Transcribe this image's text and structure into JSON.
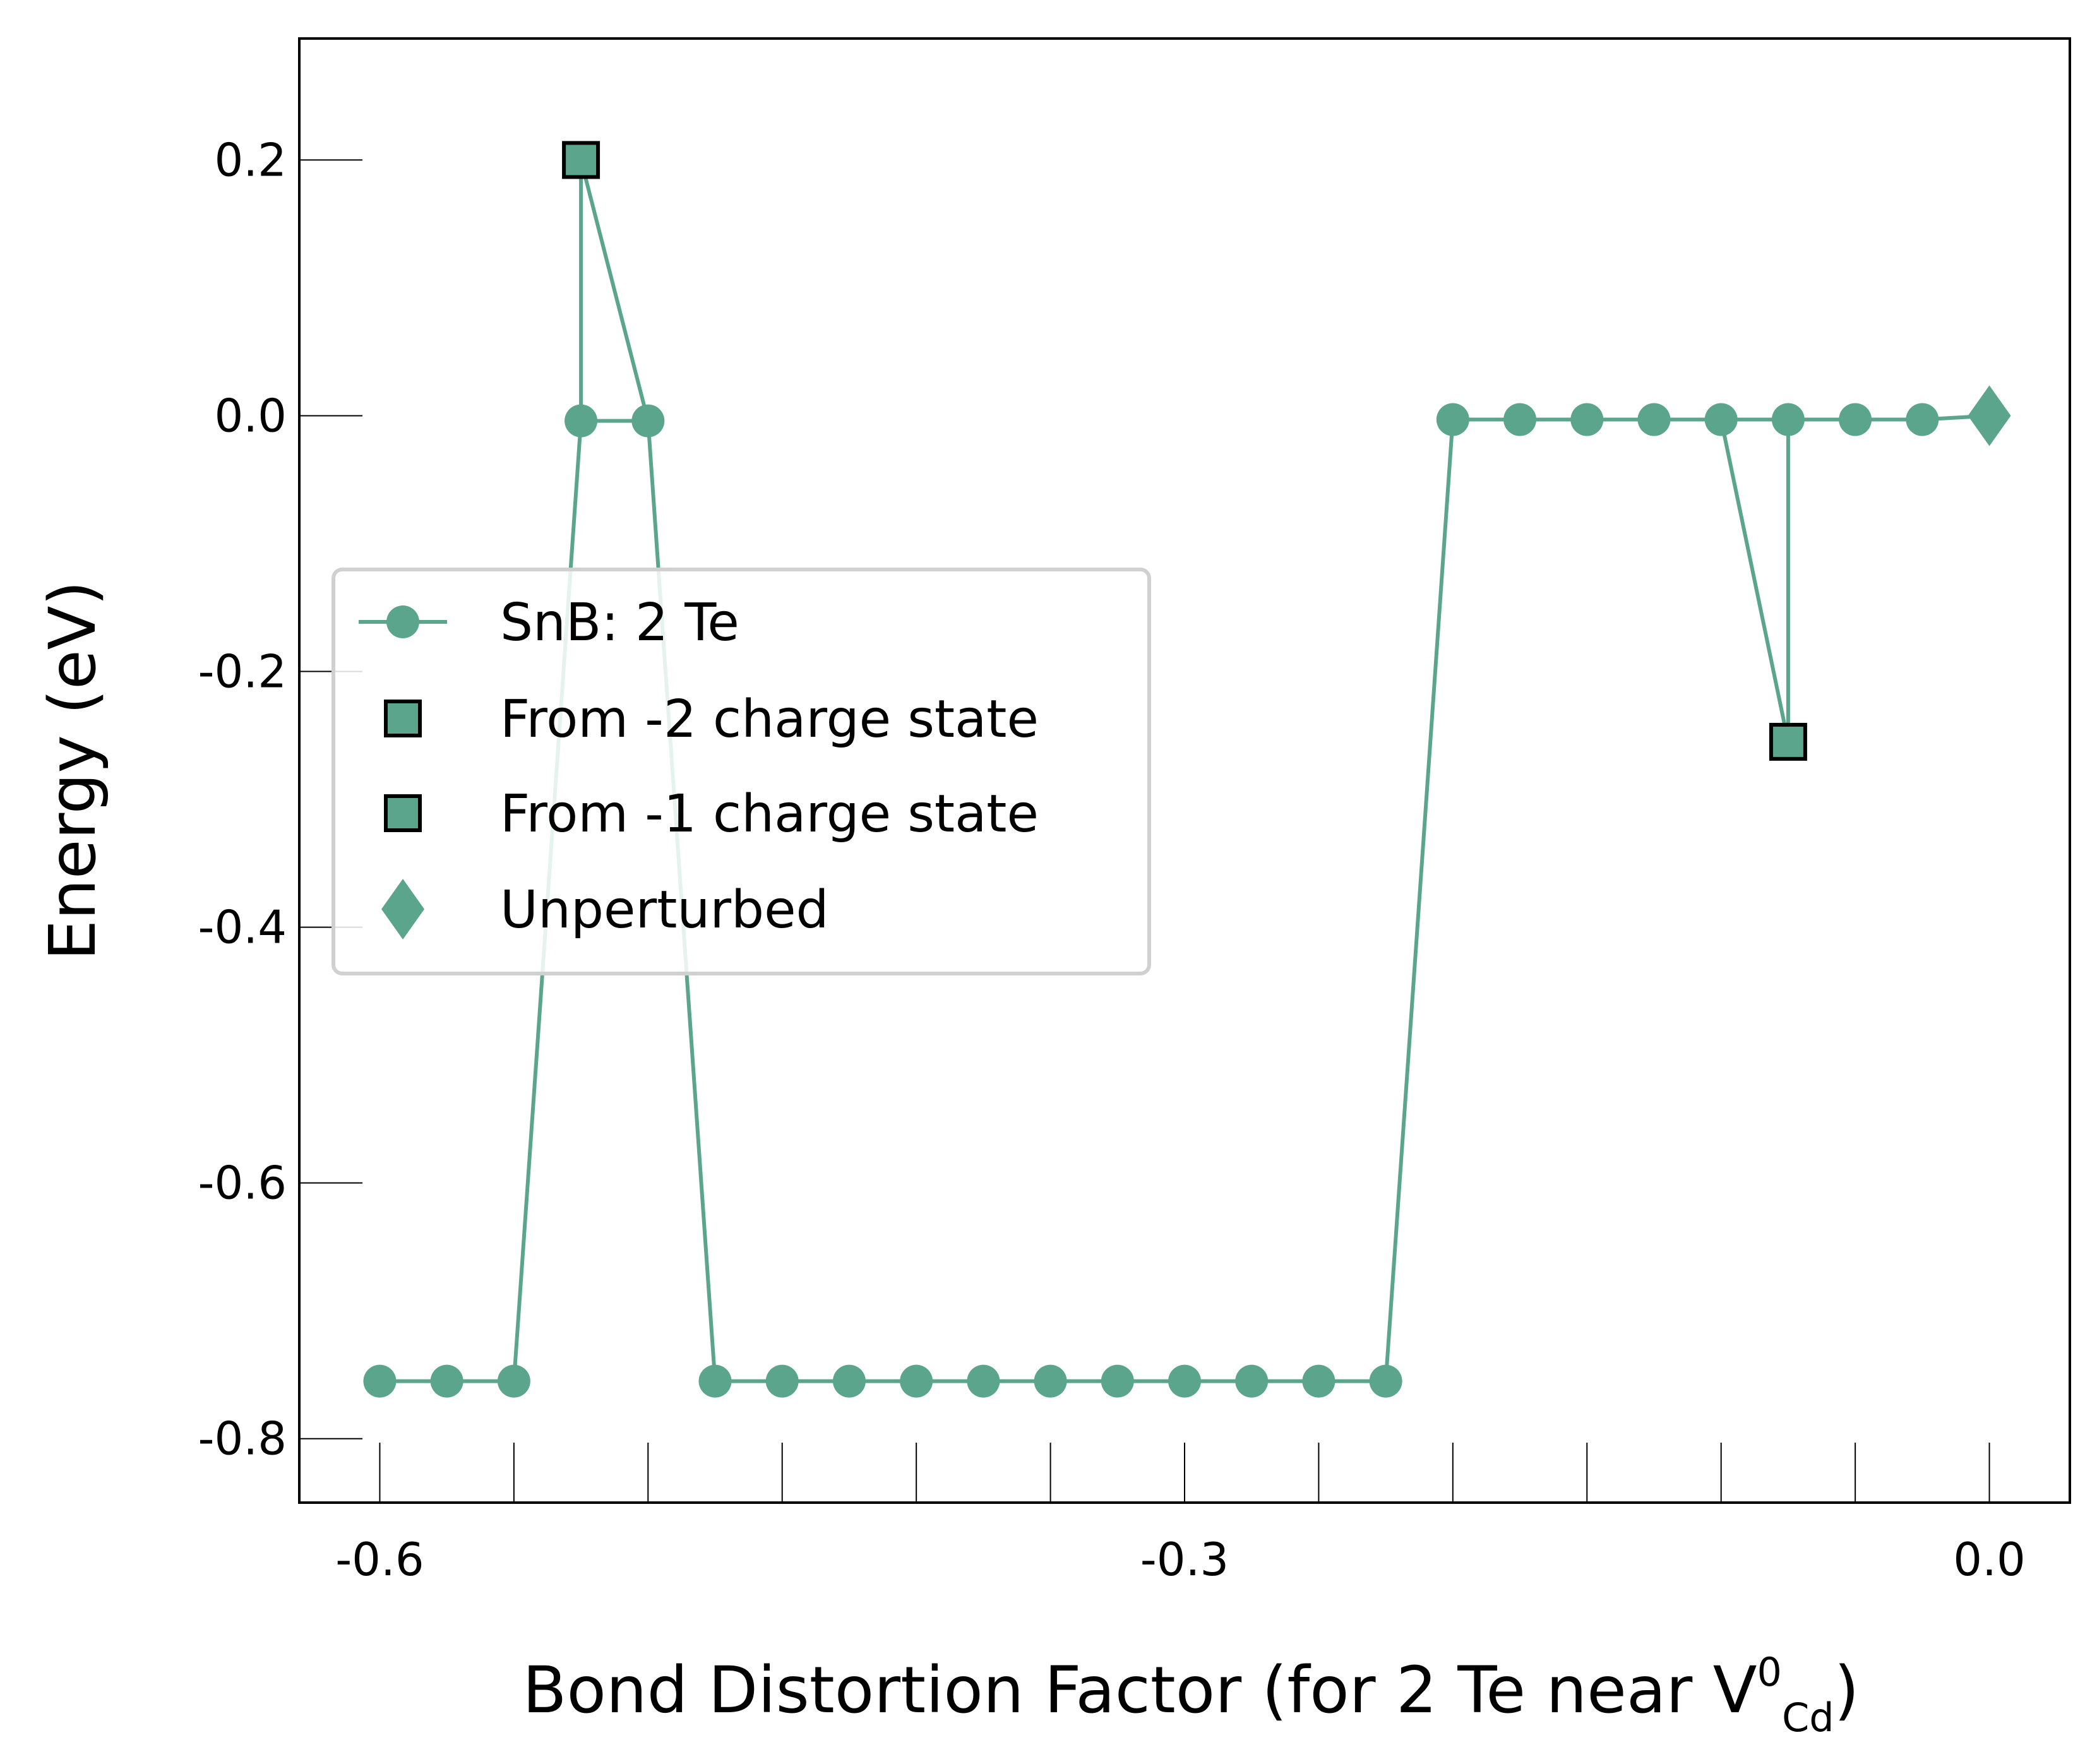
{
  "chart_data": {
    "type": "line",
    "xlabel": "Bond Distortion Factor (for 2 Te near V",
    "xlabel_sup": "0",
    "xlabel_sub": "Cd",
    "xlabel_close": ")",
    "ylabel": "Energy (eV)",
    "xlim": [
      -0.63,
      0.03
    ],
    "ylim": [
      -0.85,
      0.295
    ],
    "grid": false,
    "legend_placement": "center-left",
    "x_ticks": [
      -0.6,
      -0.55,
      -0.5,
      -0.45,
      -0.4,
      -0.35,
      -0.3,
      -0.25,
      -0.2,
      -0.15,
      -0.1,
      -0.05,
      0.0
    ],
    "x_tick_labels": [
      {
        "value": -0.6,
        "label": "-0.6"
      },
      {
        "value": -0.3,
        "label": "-0.3"
      },
      {
        "value": 0.0,
        "label": "0.0"
      }
    ],
    "y_tick_labels": [
      {
        "value": 0.2,
        "label": "0.2"
      },
      {
        "value": 0.0,
        "label": "0.0"
      },
      {
        "value": -0.2,
        "label": "-0.2"
      },
      {
        "value": -0.4,
        "label": "-0.4"
      },
      {
        "value": -0.6,
        "label": "-0.6"
      },
      {
        "value": -0.8,
        "label": "-0.8"
      }
    ],
    "color": "#5aa58c",
    "series": [
      {
        "name": "SnB: 2 Te",
        "marker": "circle",
        "points": [
          {
            "x": -0.6,
            "y": -0.755
          },
          {
            "x": -0.575,
            "y": -0.755
          },
          {
            "x": -0.55,
            "y": -0.755
          },
          {
            "x": -0.525,
            "y": -0.004
          },
          {
            "x": -0.5,
            "y": -0.004
          },
          {
            "x": -0.475,
            "y": -0.755
          },
          {
            "x": -0.45,
            "y": -0.755
          },
          {
            "x": -0.425,
            "y": -0.755
          },
          {
            "x": -0.4,
            "y": -0.755
          },
          {
            "x": -0.375,
            "y": -0.755
          },
          {
            "x": -0.35,
            "y": -0.755
          },
          {
            "x": -0.325,
            "y": -0.755
          },
          {
            "x": -0.3,
            "y": -0.755
          },
          {
            "x": -0.275,
            "y": -0.755
          },
          {
            "x": -0.25,
            "y": -0.755
          },
          {
            "x": -0.225,
            "y": -0.755
          },
          {
            "x": -0.2,
            "y": -0.003
          },
          {
            "x": -0.175,
            "y": -0.003
          },
          {
            "x": -0.15,
            "y": -0.003
          },
          {
            "x": -0.125,
            "y": -0.003
          },
          {
            "x": -0.1,
            "y": -0.003
          },
          {
            "x": -0.075,
            "y": -0.003
          },
          {
            "x": -0.05,
            "y": -0.003
          },
          {
            "x": -0.025,
            "y": -0.003
          }
        ]
      },
      {
        "name": "From -2 charge state",
        "marker": "square",
        "points": [
          {
            "x": -0.525,
            "y": 0.2,
            "connect_to_x": [
              -0.525,
              -0.5
            ]
          }
        ]
      },
      {
        "name": "From -1 charge state",
        "marker": "square",
        "points": [
          {
            "x": -0.075,
            "y": -0.255,
            "connect_to_x": [
              -0.1,
              -0.075
            ]
          }
        ]
      },
      {
        "name": "Unperturbed",
        "marker": "diamond",
        "points": [
          {
            "x": 0.0,
            "y": 0.0,
            "connect_to_x": [
              -0.025
            ]
          }
        ]
      }
    ]
  }
}
